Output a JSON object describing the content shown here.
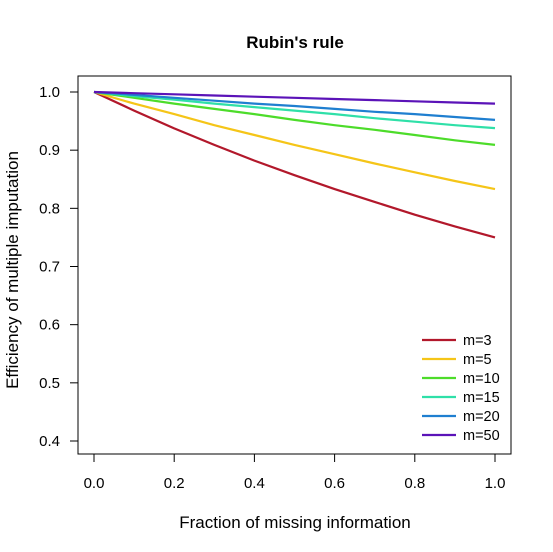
{
  "chart_data": {
    "type": "line",
    "title": "Rubin's rule",
    "xlabel": "Fraction of missing information",
    "ylabel": "Efficiency of multiple imputation",
    "xlim": [
      0.0,
      1.0
    ],
    "ylim": [
      0.38,
      1.02
    ],
    "xticks": [
      0.0,
      0.2,
      0.4,
      0.6,
      0.8,
      1.0
    ],
    "xtick_labels": [
      "0.0",
      "0.2",
      "0.4",
      "0.6",
      "0.8",
      "1.0"
    ],
    "yticks": [
      0.4,
      0.5,
      0.6,
      0.7,
      0.8,
      0.9,
      1.0
    ],
    "ytick_labels": [
      "0.4",
      "0.5",
      "0.6",
      "0.7",
      "0.8",
      "0.9",
      "1.0"
    ],
    "grid": false,
    "legend_position": "bottom-right",
    "x": [
      0.0,
      0.1,
      0.2,
      0.3,
      0.4,
      0.5,
      0.6,
      0.7,
      0.8,
      0.9,
      1.0
    ],
    "series": [
      {
        "name": "m=3",
        "color": "#b2182b",
        "values": [
          1.0,
          0.968,
          0.9375,
          0.909,
          0.882,
          0.857,
          0.833,
          0.811,
          0.789,
          0.769,
          0.75
        ]
      },
      {
        "name": "m=5",
        "color": "#f5c518",
        "values": [
          1.0,
          0.98,
          0.962,
          0.943,
          0.926,
          0.909,
          0.893,
          0.877,
          0.862,
          0.847,
          0.833
        ]
      },
      {
        "name": "m=10",
        "color": "#4ddc2a",
        "values": [
          1.0,
          0.99,
          0.98,
          0.971,
          0.962,
          0.952,
          0.943,
          0.935,
          0.926,
          0.917,
          0.909
        ]
      },
      {
        "name": "m=15",
        "color": "#2fe0a8",
        "values": [
          1.0,
          0.993,
          0.987,
          0.98,
          0.974,
          0.968,
          0.962,
          0.955,
          0.949,
          0.943,
          0.938
        ]
      },
      {
        "name": "m=20",
        "color": "#1f7fd0",
        "values": [
          1.0,
          0.995,
          0.99,
          0.985,
          0.98,
          0.976,
          0.971,
          0.966,
          0.962,
          0.957,
          0.952
        ]
      },
      {
        "name": "m=50",
        "color": "#5b13b8",
        "values": [
          1.0,
          0.998,
          0.996,
          0.994,
          0.992,
          0.99,
          0.988,
          0.986,
          0.984,
          0.982,
          0.98
        ]
      }
    ]
  }
}
